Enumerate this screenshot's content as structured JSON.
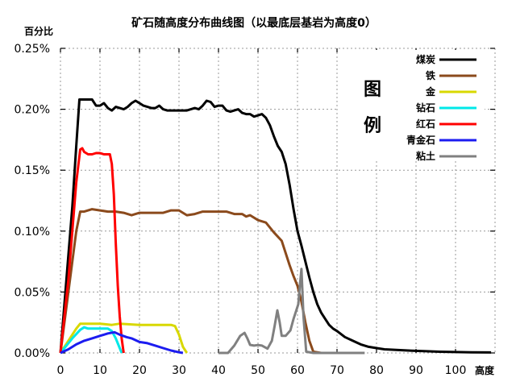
{
  "chart_data": {
    "type": "line",
    "title": "矿石随高度分布曲线图（以最底层基岩为高度0）",
    "xlabel": "高度",
    "ylabel": "百分比",
    "xlim": [
      0,
      110
    ],
    "ylim": [
      0,
      0.25
    ],
    "x_ticks": [
      0,
      10,
      20,
      30,
      40,
      50,
      60,
      70,
      80,
      90,
      100
    ],
    "y_ticks": [
      "0.00%",
      "0.05%",
      "0.10%",
      "0.15%",
      "0.20%",
      "0.25%"
    ],
    "y_tick_values": [
      0,
      0.05,
      0.1,
      0.15,
      0.2,
      0.25
    ],
    "grid": true,
    "legend_title": "图例",
    "legend_placement": "top-right",
    "series": [
      {
        "name": "煤炭",
        "color": "#000000",
        "points": [
          [
            0,
            0
          ],
          [
            1,
            0.04
          ],
          [
            2,
            0.08
          ],
          [
            3,
            0.12
          ],
          [
            4,
            0.17
          ],
          [
            4.8,
            0.208
          ],
          [
            6,
            0.208
          ],
          [
            8,
            0.208
          ],
          [
            9,
            0.203
          ],
          [
            10,
            0.203
          ],
          [
            11,
            0.205
          ],
          [
            12,
            0.201
          ],
          [
            13,
            0.199
          ],
          [
            14,
            0.202
          ],
          [
            15,
            0.201
          ],
          [
            16,
            0.2
          ],
          [
            17,
            0.202
          ],
          [
            18,
            0.205
          ],
          [
            19,
            0.207
          ],
          [
            20,
            0.205
          ],
          [
            21,
            0.203
          ],
          [
            22,
            0.202
          ],
          [
            23,
            0.201
          ],
          [
            24,
            0.201
          ],
          [
            25,
            0.203
          ],
          [
            26,
            0.2
          ],
          [
            27,
            0.199
          ],
          [
            30,
            0.199
          ],
          [
            32,
            0.199
          ],
          [
            33,
            0.2
          ],
          [
            34,
            0.201
          ],
          [
            35,
            0.2
          ],
          [
            36,
            0.203
          ],
          [
            37,
            0.207
          ],
          [
            38,
            0.206
          ],
          [
            39,
            0.202
          ],
          [
            40,
            0.203
          ],
          [
            41,
            0.203
          ],
          [
            42,
            0.199
          ],
          [
            43,
            0.198
          ],
          [
            44,
            0.199
          ],
          [
            45,
            0.2
          ],
          [
            46,
            0.197
          ],
          [
            47,
            0.196
          ],
          [
            48,
            0.196
          ],
          [
            49,
            0.194
          ],
          [
            50,
            0.195
          ],
          [
            51,
            0.196
          ],
          [
            52,
            0.193
          ],
          [
            53,
            0.187
          ],
          [
            54,
            0.178
          ],
          [
            55,
            0.17
          ],
          [
            56,
            0.165
          ],
          [
            57,
            0.155
          ],
          [
            58,
            0.138
          ],
          [
            59,
            0.118
          ],
          [
            60,
            0.1
          ],
          [
            61,
            0.088
          ],
          [
            62,
            0.075
          ],
          [
            63,
            0.062
          ],
          [
            64,
            0.05
          ],
          [
            65,
            0.04
          ],
          [
            66,
            0.033
          ],
          [
            67,
            0.028
          ],
          [
            68,
            0.023
          ],
          [
            69,
            0.02
          ],
          [
            70,
            0.018
          ],
          [
            72,
            0.013
          ],
          [
            74,
            0.01
          ],
          [
            76,
            0.007
          ],
          [
            78,
            0.005
          ],
          [
            80,
            0.004
          ],
          [
            82,
            0.003
          ],
          [
            85,
            0.0025
          ],
          [
            88,
            0.002
          ],
          [
            92,
            0.0015
          ],
          [
            96,
            0.001
          ],
          [
            100,
            0.0007
          ],
          [
            104,
            0.0005
          ],
          [
            109,
            0.0004
          ]
        ]
      },
      {
        "name": "铁",
        "color": "#8b4a1c",
        "points": [
          [
            0,
            0
          ],
          [
            2,
            0.05
          ],
          [
            4,
            0.1
          ],
          [
            5,
            0.116
          ],
          [
            6,
            0.116
          ],
          [
            7,
            0.117
          ],
          [
            8,
            0.118
          ],
          [
            10,
            0.117
          ],
          [
            12,
            0.116
          ],
          [
            14,
            0.116
          ],
          [
            16,
            0.115
          ],
          [
            18,
            0.113
          ],
          [
            20,
            0.115
          ],
          [
            22,
            0.115
          ],
          [
            24,
            0.115
          ],
          [
            26,
            0.115
          ],
          [
            28,
            0.117
          ],
          [
            30,
            0.117
          ],
          [
            31,
            0.115
          ],
          [
            32,
            0.113
          ],
          [
            34,
            0.114
          ],
          [
            36,
            0.116
          ],
          [
            38,
            0.116
          ],
          [
            40,
            0.116
          ],
          [
            42,
            0.116
          ],
          [
            44,
            0.114
          ],
          [
            46,
            0.114
          ],
          [
            47,
            0.112
          ],
          [
            48,
            0.113
          ],
          [
            50,
            0.109
          ],
          [
            52,
            0.107
          ],
          [
            54,
            0.099
          ],
          [
            56,
            0.092
          ],
          [
            58,
            0.072
          ],
          [
            59,
            0.063
          ],
          [
            60,
            0.055
          ],
          [
            61,
            0.042
          ],
          [
            62,
            0.025
          ],
          [
            63,
            0.01
          ],
          [
            64,
            0.001
          ],
          [
            66,
            0
          ]
        ]
      },
      {
        "name": "金",
        "color": "#d8d800",
        "points": [
          [
            0,
            0
          ],
          [
            2,
            0.01
          ],
          [
            4,
            0.02
          ],
          [
            5,
            0.024
          ],
          [
            10,
            0.024
          ],
          [
            13,
            0.023
          ],
          [
            15,
            0.024
          ],
          [
            20,
            0.023
          ],
          [
            25,
            0.023
          ],
          [
            28,
            0.023
          ],
          [
            29,
            0.022
          ],
          [
            30,
            0.015
          ],
          [
            31,
            0.005
          ],
          [
            32,
            0
          ]
        ]
      },
      {
        "name": "钻石",
        "color": "#00e8e8",
        "points": [
          [
            0,
            0
          ],
          [
            3,
            0.012
          ],
          [
            5,
            0.019
          ],
          [
            6,
            0.021
          ],
          [
            7,
            0.02
          ],
          [
            10,
            0.02
          ],
          [
            12,
            0.02
          ],
          [
            13,
            0.018
          ],
          [
            14,
            0.012
          ],
          [
            15,
            0.004
          ],
          [
            15.5,
            0
          ]
        ]
      },
      {
        "name": "红石",
        "color": "#ff0000",
        "points": [
          [
            0,
            0
          ],
          [
            2,
            0.06
          ],
          [
            4,
            0.14
          ],
          [
            5,
            0.167
          ],
          [
            5.5,
            0.168
          ],
          [
            6,
            0.165
          ],
          [
            7,
            0.163
          ],
          [
            8,
            0.163
          ],
          [
            9,
            0.164
          ],
          [
            10,
            0.164
          ],
          [
            11,
            0.163
          ],
          [
            12.5,
            0.163
          ],
          [
            13,
            0.155
          ],
          [
            13.5,
            0.13
          ],
          [
            14,
            0.09
          ],
          [
            14.5,
            0.055
          ],
          [
            15,
            0.03
          ],
          [
            15.5,
            0.012
          ],
          [
            16,
            0
          ]
        ]
      },
      {
        "name": "青金石",
        "color": "#1c1cf0",
        "points": [
          [
            0,
            0
          ],
          [
            2,
            0.003
          ],
          [
            4,
            0.007
          ],
          [
            6,
            0.01
          ],
          [
            8,
            0.012
          ],
          [
            10,
            0.014
          ],
          [
            12,
            0.016
          ],
          [
            13.7,
            0.017
          ],
          [
            15,
            0.015
          ],
          [
            16.7,
            0.013
          ],
          [
            18,
            0.012
          ],
          [
            20,
            0.009
          ],
          [
            22,
            0.008
          ],
          [
            24,
            0.006
          ],
          [
            26,
            0.004
          ],
          [
            28,
            0.002
          ],
          [
            30,
            0.0005
          ],
          [
            31,
            0
          ]
        ]
      },
      {
        "name": "粘土",
        "color": "#808080",
        "points": [
          [
            40,
            0
          ],
          [
            42.4,
            0
          ],
          [
            44,
            0.006
          ],
          [
            45.5,
            0.014
          ],
          [
            46.6,
            0.0165
          ],
          [
            47.3,
            0.012
          ],
          [
            48,
            0.0066
          ],
          [
            49,
            0.006
          ],
          [
            50,
            0.0065
          ],
          [
            51,
            0.006
          ],
          [
            52.4,
            0.0035
          ],
          [
            53.5,
            0.01
          ],
          [
            54.2,
            0.022
          ],
          [
            54.9,
            0.035
          ],
          [
            55.5,
            0.025
          ],
          [
            56,
            0.014
          ],
          [
            57,
            0.014
          ],
          [
            58.2,
            0.0185
          ],
          [
            59,
            0.028
          ],
          [
            60.2,
            0.04
          ],
          [
            60.6,
            0.055
          ],
          [
            61,
            0.069
          ],
          [
            61.5,
            0.03
          ],
          [
            62.2,
            0.001
          ],
          [
            64,
            0
          ],
          [
            77,
            0
          ]
        ]
      }
    ]
  }
}
